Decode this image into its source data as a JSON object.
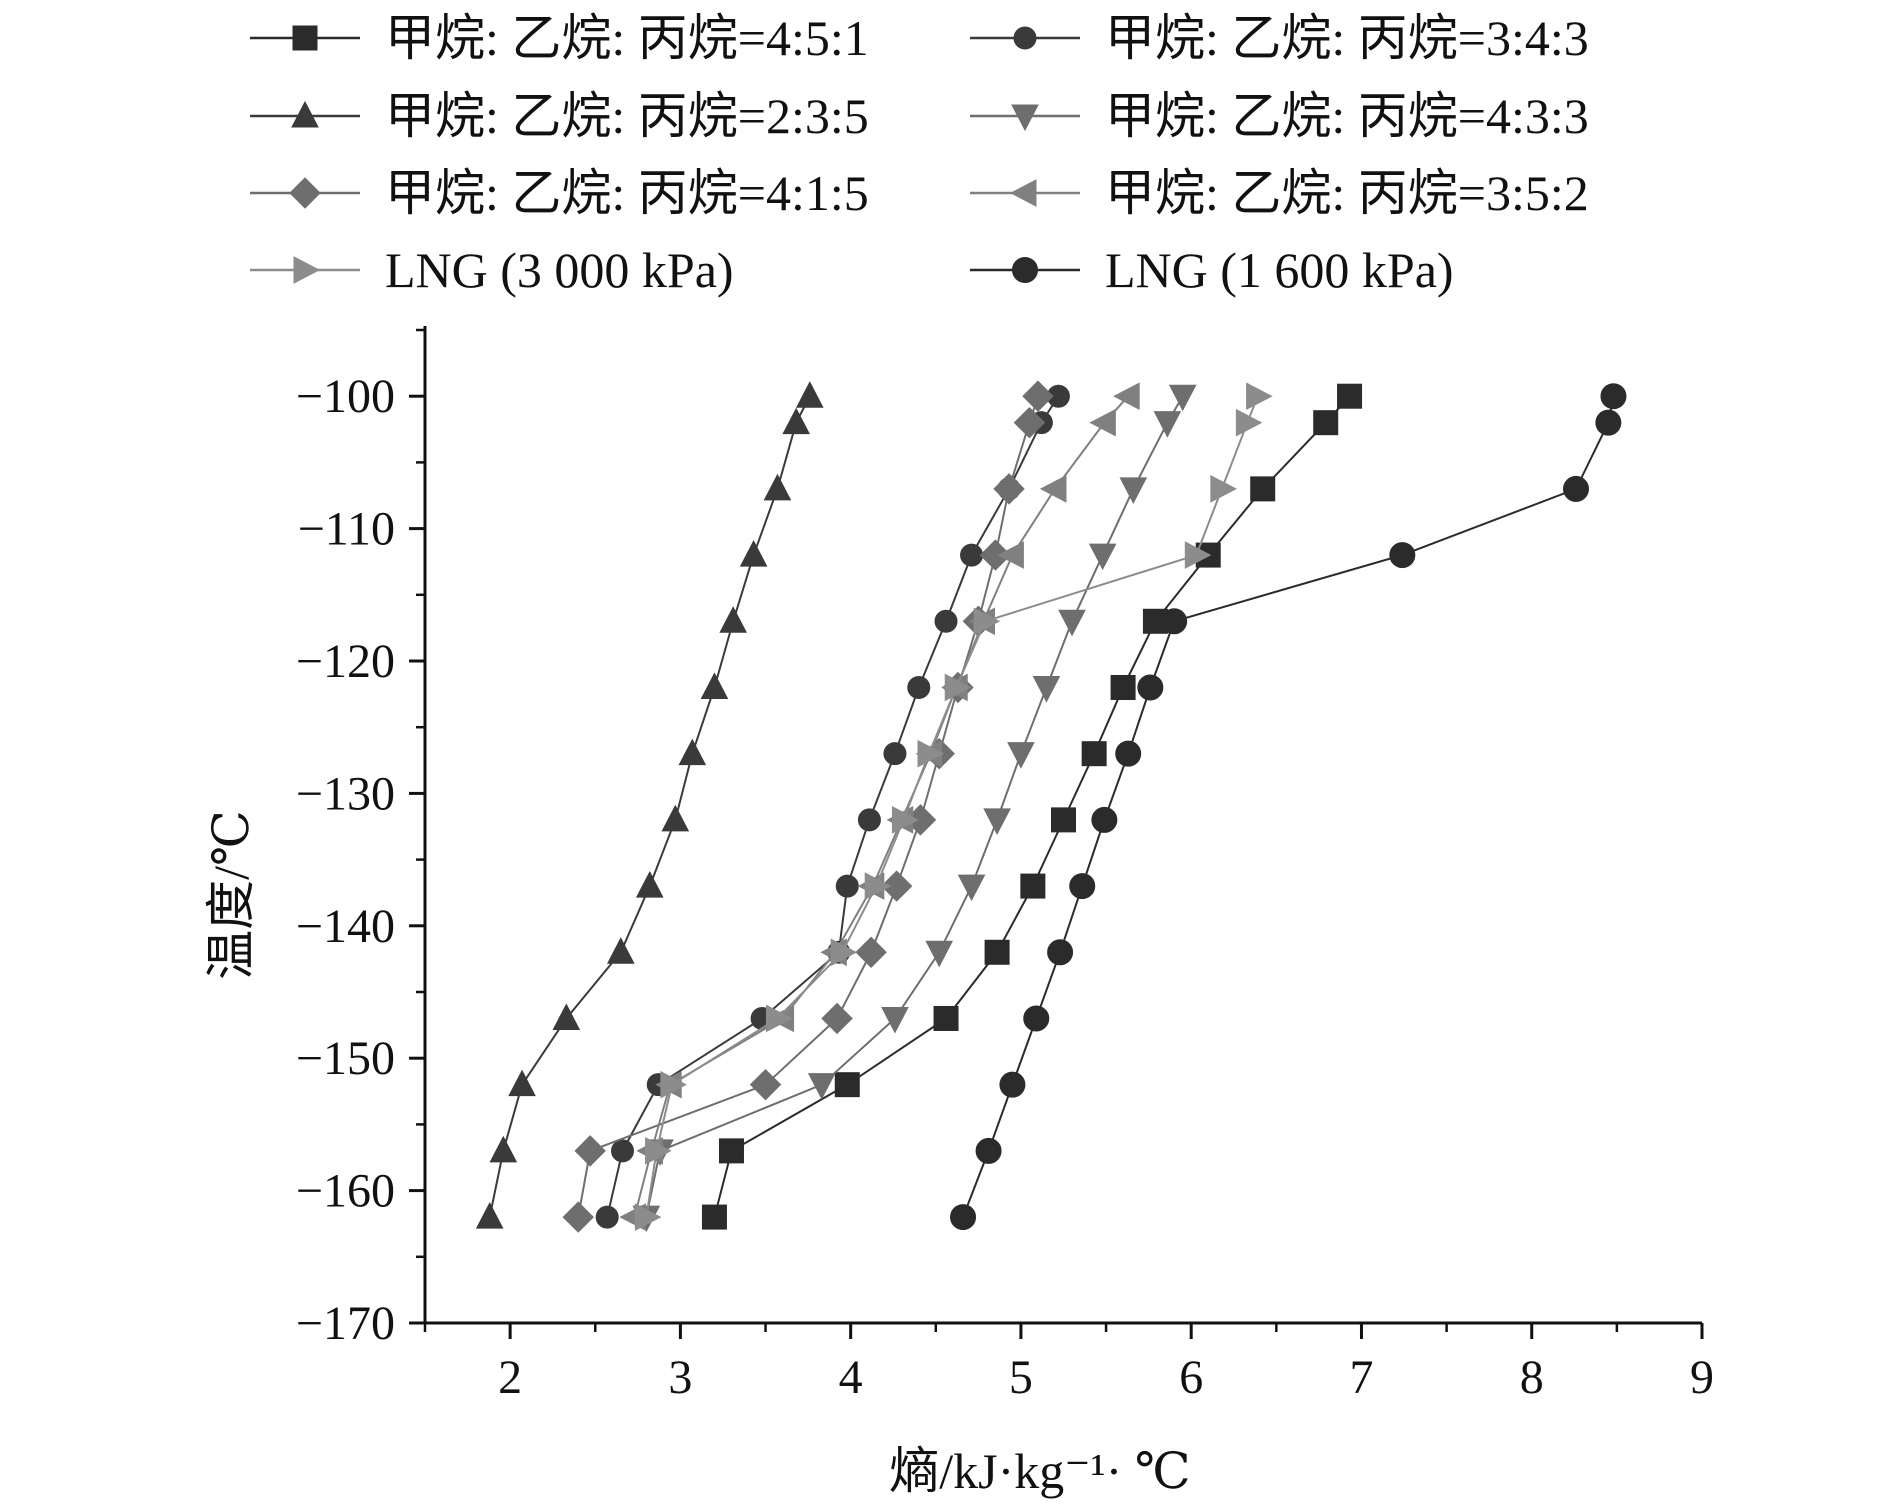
{
  "chart_data": {
    "type": "line",
    "title": "",
    "xlabel": "熵/kJ·kg⁻¹· ℃",
    "ylabel": "温度/℃",
    "xlim": [
      1.5,
      9
    ],
    "ylim": [
      -170,
      -95
    ],
    "x_ticks": [
      2,
      3,
      4,
      5,
      6,
      7,
      8,
      9
    ],
    "x_tick_labels": [
      "2",
      "3",
      "4",
      "5",
      "6",
      "7",
      "8",
      "9"
    ],
    "y_ticks": [
      -100,
      -110,
      -120,
      -130,
      -140,
      -150,
      -160,
      -170
    ],
    "y_tick_labels": [
      "−100",
      "−110",
      "−120",
      "−130",
      "−140",
      "−150",
      "−160",
      "−170"
    ],
    "grid": false,
    "legend_position": "top",
    "series": [
      {
        "name": "甲烷: 乙烷: 丙烷=4:5:1",
        "marker": "square",
        "color": "#2b2b2b",
        "points": [
          [
            3.2,
            -162
          ],
          [
            3.3,
            -157
          ],
          [
            3.98,
            -152
          ],
          [
            4.56,
            -147
          ],
          [
            4.86,
            -142
          ],
          [
            5.07,
            -137
          ],
          [
            5.25,
            -132
          ],
          [
            5.43,
            -127
          ],
          [
            5.6,
            -122
          ],
          [
            5.79,
            -117
          ],
          [
            6.1,
            -112
          ],
          [
            6.42,
            -107
          ],
          [
            6.79,
            -102
          ],
          [
            6.93,
            -100
          ]
        ]
      },
      {
        "name": "甲烷: 乙烷: 丙烷=3:4:3",
        "marker": "circle-small",
        "color": "#3a3a3a",
        "points": [
          [
            2.57,
            -162
          ],
          [
            2.66,
            -157
          ],
          [
            2.87,
            -152
          ],
          [
            3.48,
            -147
          ],
          [
            3.93,
            -142
          ],
          [
            3.98,
            -137
          ],
          [
            4.11,
            -132
          ],
          [
            4.26,
            -127
          ],
          [
            4.4,
            -122
          ],
          [
            4.56,
            -117
          ],
          [
            4.71,
            -112
          ],
          [
            4.93,
            -107
          ],
          [
            5.12,
            -102
          ],
          [
            5.22,
            -100
          ]
        ]
      },
      {
        "name": "甲烷: 乙烷: 丙烷=2:3:5",
        "marker": "triangle-up",
        "color": "#3a3a3a",
        "points": [
          [
            1.88,
            -162
          ],
          [
            1.96,
            -157
          ],
          [
            2.07,
            -152
          ],
          [
            2.33,
            -147
          ],
          [
            2.65,
            -142
          ],
          [
            2.82,
            -137
          ],
          [
            2.97,
            -132
          ],
          [
            3.07,
            -127
          ],
          [
            3.2,
            -122
          ],
          [
            3.31,
            -117
          ],
          [
            3.43,
            -112
          ],
          [
            3.57,
            -107
          ],
          [
            3.68,
            -102
          ],
          [
            3.76,
            -100
          ]
        ]
      },
      {
        "name": "甲烷: 乙烷: 丙烷=4:3:3",
        "marker": "triangle-down",
        "color": "#6e6e6e",
        "points": [
          [
            2.8,
            -162
          ],
          [
            2.88,
            -157
          ],
          [
            3.83,
            -152
          ],
          [
            4.26,
            -147
          ],
          [
            4.52,
            -142
          ],
          [
            4.71,
            -137
          ],
          [
            4.86,
            -132
          ],
          [
            5.0,
            -127
          ],
          [
            5.15,
            -122
          ],
          [
            5.3,
            -117
          ],
          [
            5.48,
            -112
          ],
          [
            5.66,
            -107
          ],
          [
            5.86,
            -102
          ],
          [
            5.95,
            -100
          ]
        ]
      },
      {
        "name": "甲烷: 乙烷: 丙烷=4:1:5",
        "marker": "diamond",
        "color": "#6e6e6e",
        "points": [
          [
            2.4,
            -162
          ],
          [
            2.47,
            -157
          ],
          [
            3.5,
            -152
          ],
          [
            3.92,
            -147
          ],
          [
            4.12,
            -142
          ],
          [
            4.27,
            -137
          ],
          [
            4.41,
            -132
          ],
          [
            4.52,
            -127
          ],
          [
            4.63,
            -122
          ],
          [
            4.75,
            -117
          ],
          [
            4.85,
            -112
          ],
          [
            4.93,
            -107
          ],
          [
            5.05,
            -102
          ],
          [
            5.1,
            -100
          ]
        ]
      },
      {
        "name": "甲烷: 乙烷: 丙烷=3:5:2",
        "marker": "triangle-left",
        "color": "#808080",
        "points": [
          [
            2.73,
            -162
          ],
          [
            2.83,
            -157
          ],
          [
            2.94,
            -152
          ],
          [
            3.6,
            -147
          ],
          [
            3.91,
            -142
          ],
          [
            4.13,
            -137
          ],
          [
            4.3,
            -132
          ],
          [
            4.47,
            -127
          ],
          [
            4.62,
            -122
          ],
          [
            4.78,
            -117
          ],
          [
            4.95,
            -112
          ],
          [
            5.2,
            -107
          ],
          [
            5.49,
            -102
          ],
          [
            5.63,
            -100
          ]
        ]
      },
      {
        "name": "LNG (3 000 kPa)",
        "marker": "triangle-right",
        "color": "#8c8c8c",
        "points": [
          [
            2.8,
            -162
          ],
          [
            2.86,
            -157
          ],
          [
            2.95,
            -152
          ],
          [
            3.57,
            -147
          ],
          [
            3.95,
            -142
          ],
          [
            4.15,
            -137
          ],
          [
            4.31,
            -132
          ],
          [
            4.46,
            -127
          ],
          [
            4.62,
            -122
          ],
          [
            4.79,
            -117
          ],
          [
            6.03,
            -112
          ],
          [
            6.18,
            -107
          ],
          [
            6.33,
            -102
          ],
          [
            6.39,
            -100
          ]
        ]
      },
      {
        "name": "LNG (1 600 kPa)",
        "marker": "circle",
        "color": "#2b2b2b",
        "points": [
          [
            4.66,
            -162
          ],
          [
            4.81,
            -157
          ],
          [
            4.95,
            -152
          ],
          [
            5.09,
            -147
          ],
          [
            5.23,
            -142
          ],
          [
            5.36,
            -137
          ],
          [
            5.49,
            -132
          ],
          [
            5.63,
            -127
          ],
          [
            5.76,
            -122
          ],
          [
            5.9,
            -117
          ],
          [
            7.24,
            -112
          ],
          [
            8.26,
            -107
          ],
          [
            8.45,
            -102
          ],
          [
            8.48,
            -100
          ]
        ]
      }
    ]
  }
}
